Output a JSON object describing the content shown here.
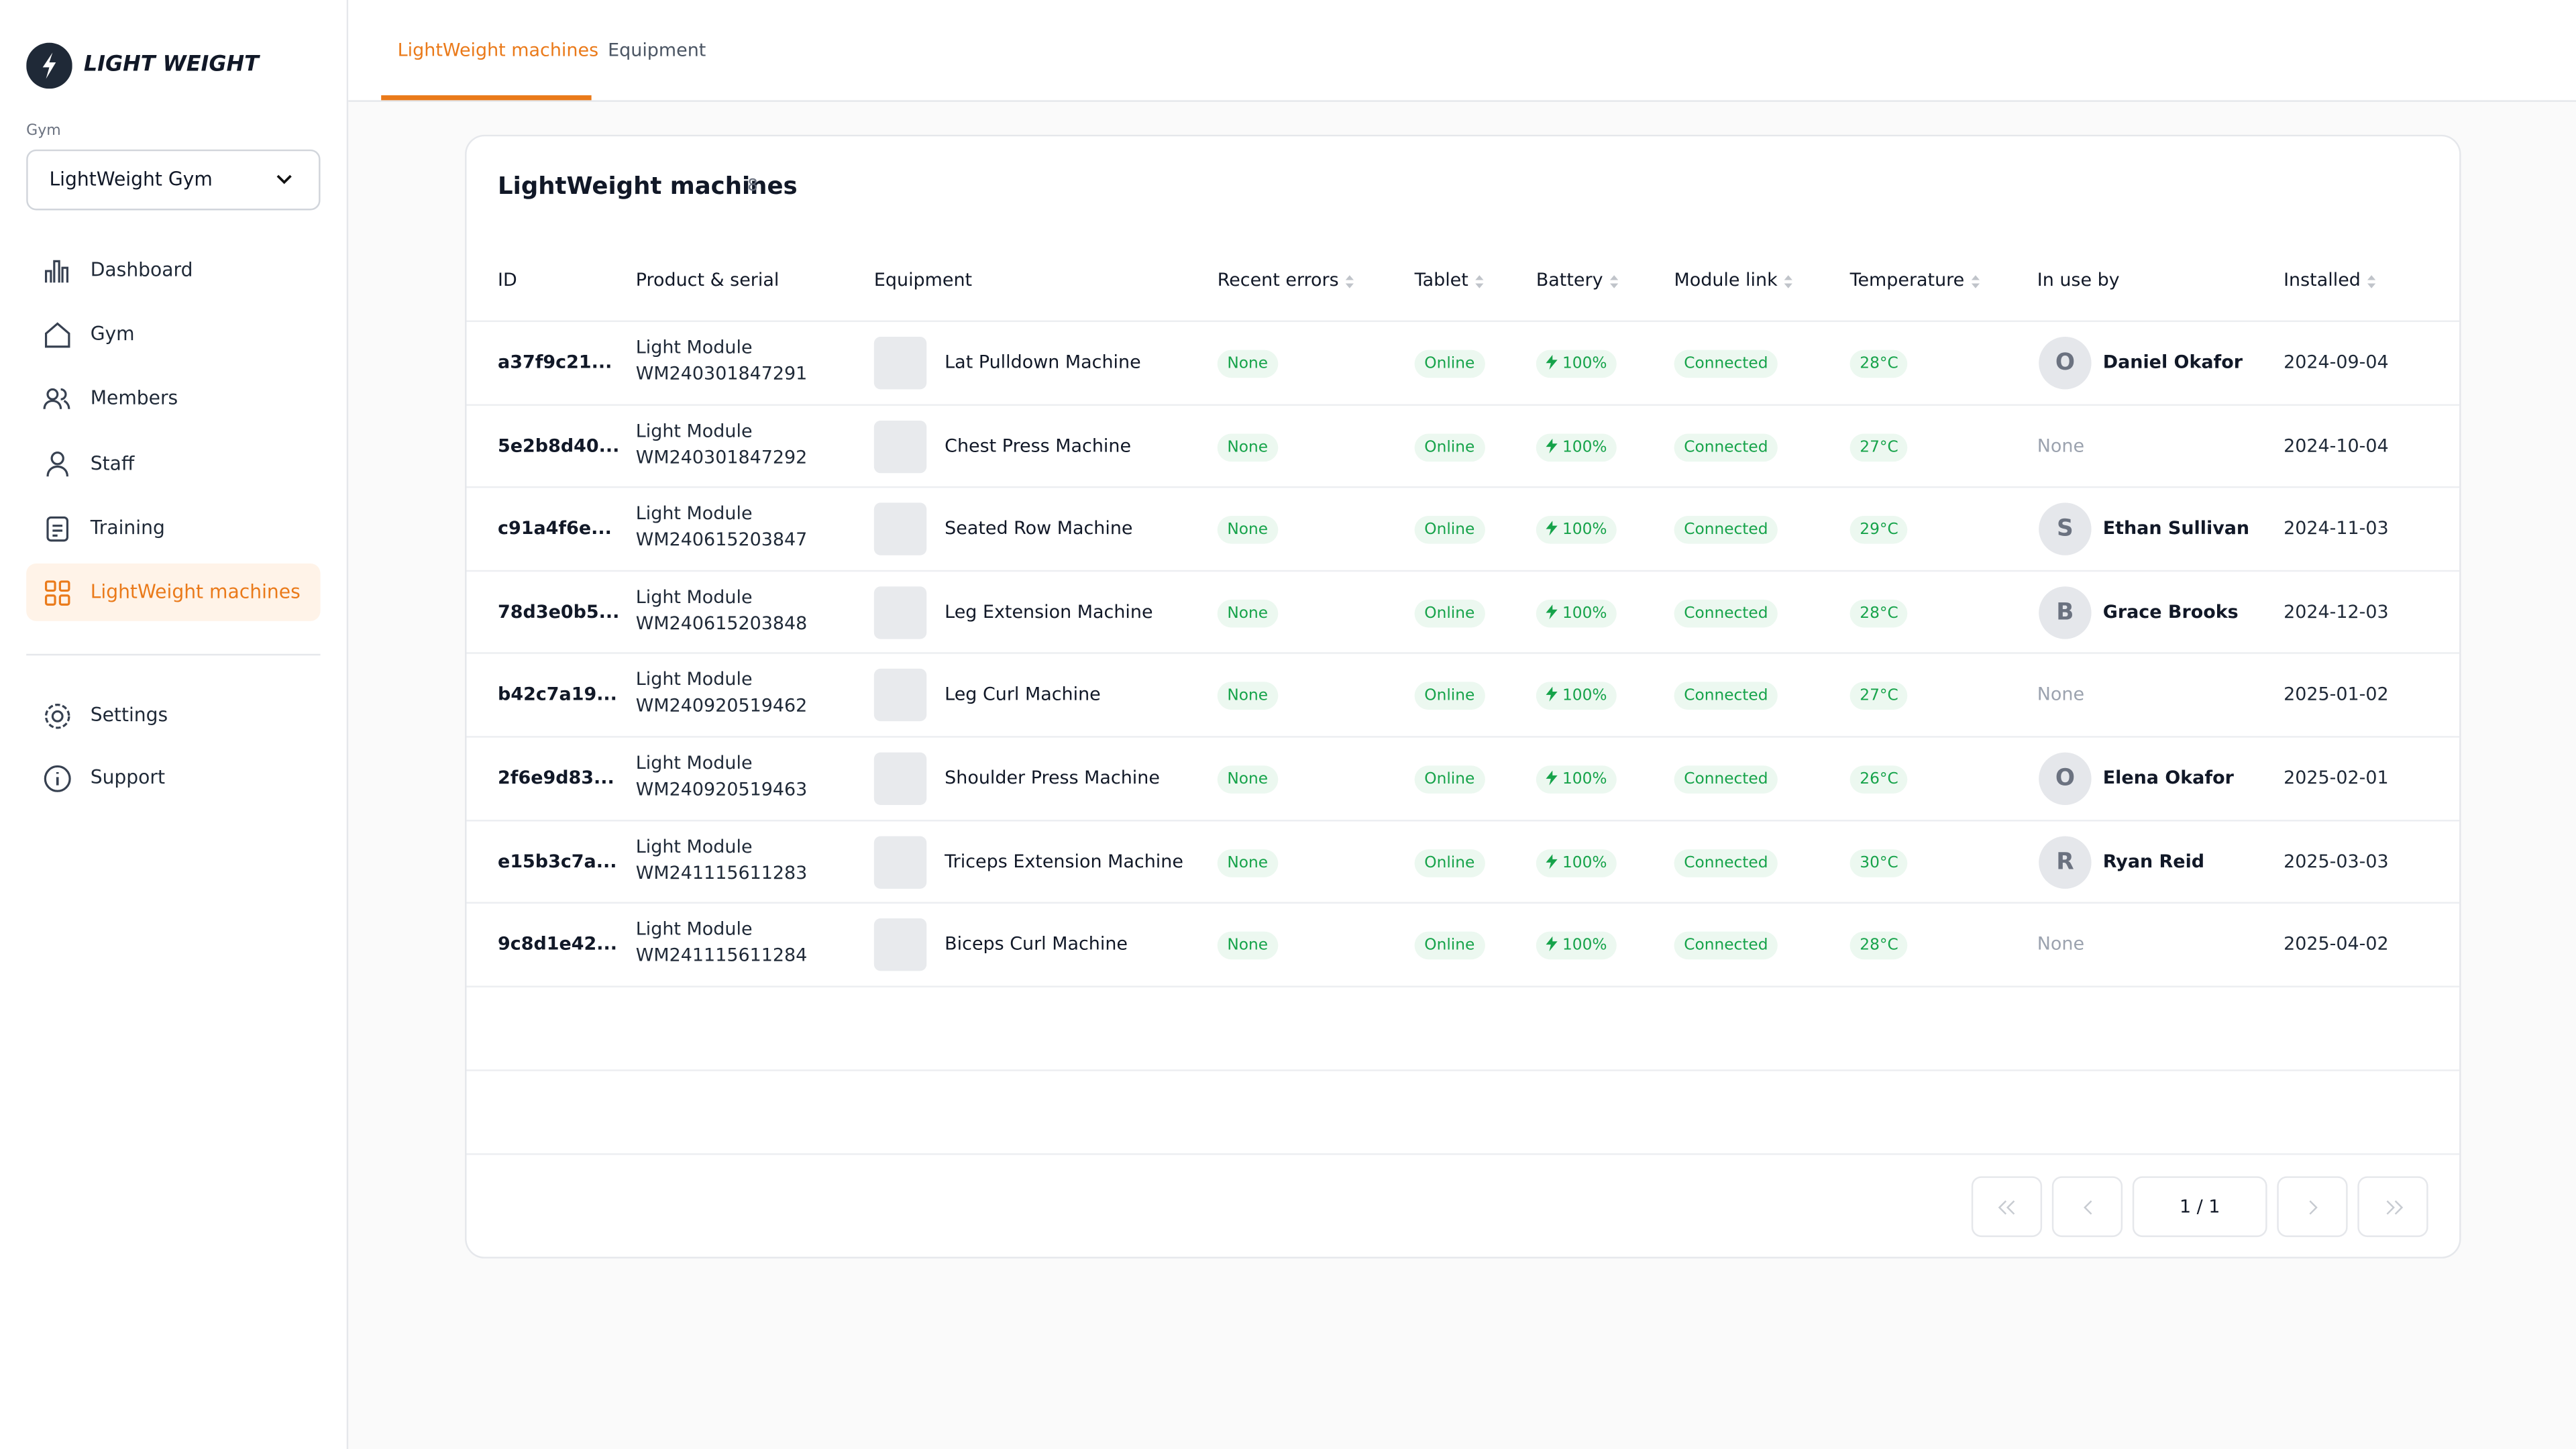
{
  "brand": "LIGHT WEIGHT",
  "gym_label": "Gym",
  "gym_select": "LightWeight Gym",
  "nav": [
    "Dashboard",
    "Gym",
    "Members",
    "Staff",
    "Training",
    "LightWeight machines"
  ],
  "nav_bottom": [
    "Settings",
    "Support"
  ],
  "tabs": [
    "LightWeight machines",
    "Equipment"
  ],
  "panel": {
    "title": "LightWeight machines",
    "count": 8
  },
  "table": {
    "columns": [
      "ID",
      "Product & serial",
      "Equipment",
      "Recent errors",
      "Tablet",
      "Battery",
      "Module link",
      "Temperature",
      "In use by",
      "Installed"
    ],
    "rows": [
      {
        "id": "a37f9c21...",
        "product": "Light Module",
        "serial": "WM240301847291",
        "equipment": "Lat Pulldown Machine",
        "errors": "None",
        "tablet": "Online",
        "battery": "100%",
        "link": "Connected",
        "temperature": "28°C",
        "initial": "O",
        "user": "Daniel Okafor",
        "installed": "2024-09-04"
      },
      {
        "id": "5e2b8d40...",
        "product": "Light Module",
        "serial": "WM240301847292",
        "equipment": "Chest Press Machine",
        "errors": "None",
        "tablet": "Online",
        "battery": "100%",
        "link": "Connected",
        "temperature": "27°C",
        "user": "None",
        "installed": "2024-10-04"
      },
      {
        "id": "c91a4f6e...",
        "product": "Light Module",
        "serial": "WM240615203847",
        "equipment": "Seated Row Machine",
        "errors": "None",
        "tablet": "Online",
        "battery": "100%",
        "link": "Connected",
        "temperature": "29°C",
        "initial": "S",
        "user": "Ethan Sullivan",
        "installed": "2024-11-03"
      },
      {
        "id": "78d3e0b5...",
        "product": "Light Module",
        "serial": "WM240615203848",
        "equipment": "Leg Extension Machine",
        "errors": "None",
        "tablet": "Online",
        "battery": "100%",
        "link": "Connected",
        "temperature": "28°C",
        "initial": "B",
        "user": "Grace Brooks",
        "installed": "2024-12-03"
      },
      {
        "id": "b42c7a19...",
        "product": "Light Module",
        "serial": "WM240920519462",
        "equipment": "Leg Curl Machine",
        "errors": "None",
        "tablet": "Online",
        "battery": "100%",
        "link": "Connected",
        "temperature": "27°C",
        "user": "None",
        "installed": "2025-01-02"
      },
      {
        "id": "2f6e9d83...",
        "product": "Light Module",
        "serial": "WM240920519463",
        "equipment": "Shoulder Press Machine",
        "errors": "None",
        "tablet": "Online",
        "battery": "100%",
        "link": "Connected",
        "temperature": "26°C",
        "initial": "O",
        "user": "Elena Okafor",
        "installed": "2025-02-01"
      },
      {
        "id": "e15b3c7a...",
        "product": "Light Module",
        "serial": "WM241115611283",
        "equipment": "Triceps Extension Machine",
        "errors": "None",
        "tablet": "Online",
        "battery": "100%",
        "link": "Connected",
        "temperature": "30°C",
        "initial": "R",
        "user": "Ryan Reid",
        "installed": "2025-03-03"
      },
      {
        "id": "9c8d1e42...",
        "product": "Light Module",
        "serial": "WM241115611284",
        "equipment": "Biceps Curl Machine",
        "errors": "None",
        "tablet": "Online",
        "battery": "100%",
        "link": "Connected",
        "temperature": "28°C",
        "user": "None",
        "installed": "2025-04-02"
      }
    ]
  },
  "pagination": "1 / 1"
}
